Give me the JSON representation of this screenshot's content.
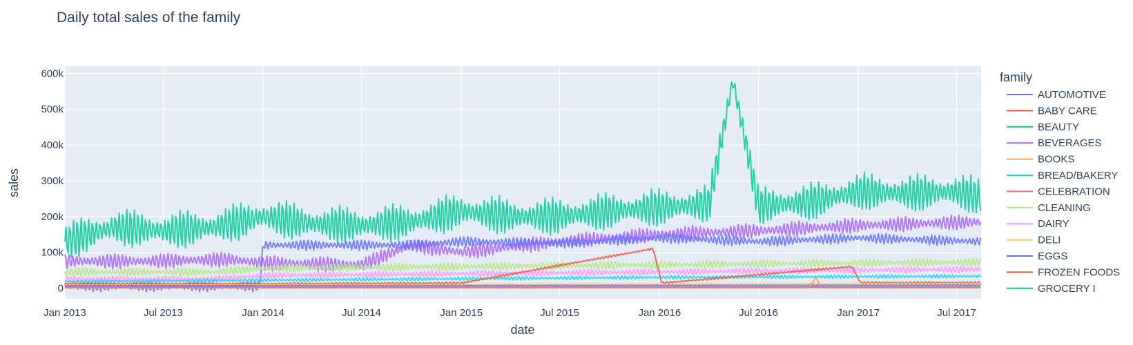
{
  "chart_data": {
    "type": "line",
    "title": "Daily total sales of the family",
    "xlabel": "date",
    "ylabel": "sales",
    "xlim": [
      "2013-01-01",
      "2017-08-15"
    ],
    "ylim": [
      -30000,
      620000
    ],
    "x_ticks": [
      {
        "date": "2013-01-01",
        "label": "Jan 2013"
      },
      {
        "date": "2013-07-01",
        "label": "Jul 2013"
      },
      {
        "date": "2014-01-01",
        "label": "Jan 2014"
      },
      {
        "date": "2014-07-01",
        "label": "Jul 2014"
      },
      {
        "date": "2015-01-01",
        "label": "Jan 2015"
      },
      {
        "date": "2015-07-01",
        "label": "Jul 2015"
      },
      {
        "date": "2016-01-01",
        "label": "Jan 2016"
      },
      {
        "date": "2016-07-01",
        "label": "Jul 2016"
      },
      {
        "date": "2017-01-01",
        "label": "Jan 2017"
      },
      {
        "date": "2017-07-01",
        "label": "Jul 2017"
      }
    ],
    "y_ticks": [
      {
        "value": 0,
        "label": "0"
      },
      {
        "value": 100000,
        "label": "100k"
      },
      {
        "value": 200000,
        "label": "200k"
      },
      {
        "value": 300000,
        "label": "300k"
      },
      {
        "value": 400000,
        "label": "400k"
      },
      {
        "value": 500000,
        "label": "500k"
      },
      {
        "value": 600000,
        "label": "600k"
      }
    ],
    "grid": true,
    "legend_title": "family",
    "legend_position": "right",
    "series": [
      {
        "name": "GROCERY I",
        "color": "#00cc96",
        "points": [
          [
            "2013-01-01",
            130000
          ],
          [
            "2013-04-01",
            170000
          ],
          [
            "2013-07-01",
            160000
          ],
          [
            "2013-10-01",
            170000
          ],
          [
            "2014-01-01",
            200000
          ],
          [
            "2014-04-01",
            180000
          ],
          [
            "2014-07-01",
            175000
          ],
          [
            "2014-10-01",
            185000
          ],
          [
            "2015-01-01",
            215000
          ],
          [
            "2015-04-01",
            200000
          ],
          [
            "2015-07-01",
            200000
          ],
          [
            "2015-10-01",
            215000
          ],
          [
            "2016-01-01",
            225000
          ],
          [
            "2016-04-01",
            235000
          ],
          [
            "2016-05-15",
            580000
          ],
          [
            "2016-07-01",
            230000
          ],
          [
            "2016-10-01",
            240000
          ],
          [
            "2017-01-01",
            270000
          ],
          [
            "2017-04-01",
            265000
          ],
          [
            "2017-07-01",
            270000
          ],
          [
            "2017-08-15",
            255000
          ]
        ],
        "amp": 55000
      },
      {
        "name": "BEVERAGES",
        "color": "#ab63fa",
        "points": [
          [
            "2013-01-01",
            75000
          ],
          [
            "2013-06-01",
            75000
          ],
          [
            "2013-11-01",
            80000
          ],
          [
            "2014-01-01",
            70000
          ],
          [
            "2014-07-01",
            65000
          ],
          [
            "2014-10-01",
            120000
          ],
          [
            "2015-01-01",
            100000
          ],
          [
            "2015-07-01",
            130000
          ],
          [
            "2016-01-01",
            150000
          ],
          [
            "2016-07-01",
            160000
          ],
          [
            "2017-01-01",
            175000
          ],
          [
            "2017-08-15",
            185000
          ]
        ],
        "amp": 22000
      },
      {
        "name": "AUTOMOTIVE",
        "color": "#636efa",
        "points": [
          [
            "2013-01-01",
            5000
          ],
          [
            "2013-12-25",
            5000
          ],
          [
            "2014-01-01",
            120000
          ],
          [
            "2014-10-01",
            120000
          ],
          [
            "2015-01-01",
            130000
          ],
          [
            "2015-07-01",
            125000
          ],
          [
            "2016-01-01",
            140000
          ],
          [
            "2016-07-01",
            130000
          ],
          [
            "2017-01-01",
            140000
          ],
          [
            "2017-08-15",
            130000
          ]
        ],
        "amp": 15000
      },
      {
        "name": "CLEANING",
        "color": "#b6e880",
        "points": [
          [
            "2013-01-01",
            45000
          ],
          [
            "2013-10-01",
            45000
          ],
          [
            "2014-01-01",
            55000
          ],
          [
            "2015-01-01",
            60000
          ],
          [
            "2016-01-01",
            65000
          ],
          [
            "2017-01-01",
            70000
          ],
          [
            "2017-08-15",
            72000
          ]
        ],
        "amp": 12000
      },
      {
        "name": "DAIRY",
        "color": "#ff97ff",
        "points": [
          [
            "2013-01-01",
            25000
          ],
          [
            "2013-10-01",
            25000
          ],
          [
            "2014-01-01",
            35000
          ],
          [
            "2015-01-01",
            40000
          ],
          [
            "2016-01-01",
            45000
          ],
          [
            "2017-01-01",
            50000
          ],
          [
            "2017-08-15",
            52000
          ]
        ],
        "amp": 9000
      },
      {
        "name": "BREAD/BAKERY",
        "color": "#19d3f3",
        "points": [
          [
            "2013-01-01",
            18000
          ],
          [
            "2014-01-01",
            22000
          ],
          [
            "2015-01-01",
            26000
          ],
          [
            "2016-01-01",
            30000
          ],
          [
            "2017-01-01",
            32000
          ],
          [
            "2017-08-15",
            33000
          ]
        ],
        "amp": 5000
      },
      {
        "name": "FROZEN FOODS",
        "color": "#ef553b",
        "points": [
          [
            "2013-01-01",
            12000
          ],
          [
            "2014-01-01",
            12000
          ],
          [
            "2015-01-01",
            14000
          ],
          [
            "2015-12-20",
            110000
          ],
          [
            "2016-01-05",
            14000
          ],
          [
            "2016-12-20",
            60000
          ],
          [
            "2017-01-05",
            15000
          ],
          [
            "2017-08-15",
            15000
          ]
        ],
        "amp": 3000
      },
      {
        "name": "DELI",
        "color": "#fecb52",
        "points": [
          [
            "2013-01-01",
            8000
          ],
          [
            "2014-01-01",
            9000
          ],
          [
            "2015-01-01",
            10000
          ],
          [
            "2016-01-01",
            11000
          ],
          [
            "2017-01-01",
            12000
          ],
          [
            "2017-08-15",
            12000
          ]
        ],
        "amp": 2000
      },
      {
        "name": "BABY CARE",
        "color": "#ef553b",
        "points": [
          [
            "2013-01-01",
            1000
          ],
          [
            "2017-08-15",
            1500
          ]
        ],
        "amp": 500
      },
      {
        "name": "EGGS",
        "color": "#636efa",
        "points": [
          [
            "2013-01-01",
            6000
          ],
          [
            "2017-08-15",
            8000
          ]
        ],
        "amp": 1500
      },
      {
        "name": "BEAUTY",
        "color": "#00cc96",
        "points": [
          [
            "2013-01-01",
            2000
          ],
          [
            "2017-08-15",
            3000
          ]
        ],
        "amp": 800
      },
      {
        "name": "BOOKS",
        "color": "#ffa15a",
        "points": [
          [
            "2013-01-01",
            0
          ],
          [
            "2016-10-01",
            0
          ],
          [
            "2016-10-15",
            30000
          ],
          [
            "2016-10-25",
            0
          ],
          [
            "2017-08-15",
            0
          ]
        ],
        "amp": 0
      },
      {
        "name": "CELEBRATION",
        "color": "#ff6692",
        "points": [
          [
            "2013-01-01",
            1500
          ],
          [
            "2017-08-15",
            2500
          ]
        ],
        "amp": 500
      }
    ],
    "legend_entries": [
      {
        "name": "AUTOMOTIVE",
        "color": "#636efa"
      },
      {
        "name": "BABY CARE",
        "color": "#ef553b"
      },
      {
        "name": "BEAUTY",
        "color": "#00cc96"
      },
      {
        "name": "BEVERAGES",
        "color": "#ab63fa"
      },
      {
        "name": "BOOKS",
        "color": "#ffa15a"
      },
      {
        "name": "BREAD/BAKERY",
        "color": "#19d3f3"
      },
      {
        "name": "CELEBRATION",
        "color": "#ff6692"
      },
      {
        "name": "CLEANING",
        "color": "#b6e880"
      },
      {
        "name": "DAIRY",
        "color": "#ff97ff"
      },
      {
        "name": "DELI",
        "color": "#fecb52"
      },
      {
        "name": "EGGS",
        "color": "#636efa"
      },
      {
        "name": "FROZEN FOODS",
        "color": "#ef553b"
      },
      {
        "name": "GROCERY I",
        "color": "#00cc96"
      }
    ]
  }
}
